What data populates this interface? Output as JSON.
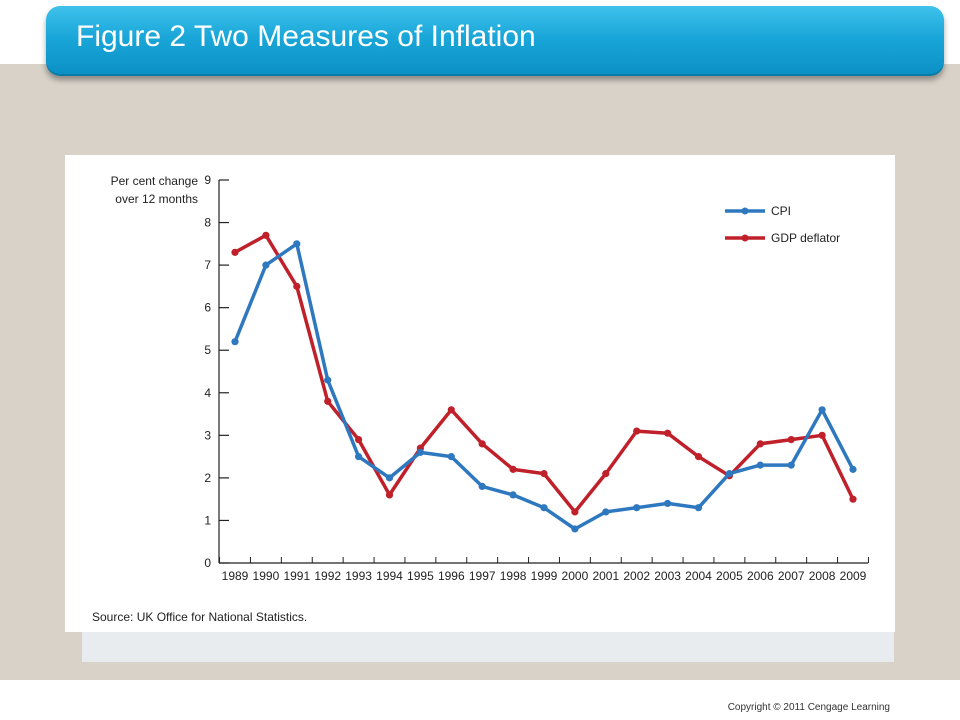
{
  "slide": {
    "title": "Figure 2 Two Measures of Inflation",
    "copyright": "Copyright  © 2011  Cengage Learning",
    "source": "Source: UK Office for National Statistics."
  },
  "chart_data": {
    "type": "line",
    "ylabel": [
      "Per cent change",
      "over 12 months"
    ],
    "xlabel": "",
    "ylim": [
      0,
      9
    ],
    "yticks": [
      0,
      1,
      2,
      3,
      4,
      5,
      6,
      7,
      8,
      9
    ],
    "x": [
      "1989",
      "1990",
      "1991",
      "1992",
      "1993",
      "1994",
      "1995",
      "1996",
      "1997",
      "1998",
      "1999",
      "2000",
      "2001",
      "2002",
      "2003",
      "2004",
      "2005",
      "2006",
      "2007",
      "2008",
      "2009"
    ],
    "legend_position": "top-right",
    "series": [
      {
        "name": "CPI",
        "color": "#2e78c0",
        "values": [
          5.2,
          7.0,
          7.5,
          4.3,
          2.5,
          2.0,
          2.6,
          2.5,
          1.8,
          1.6,
          1.3,
          0.8,
          1.2,
          1.3,
          1.4,
          1.3,
          2.1,
          2.3,
          2.3,
          3.6,
          2.2
        ]
      },
      {
        "name": "GDP deflator",
        "color": "#c0202a",
        "values": [
          7.3,
          7.7,
          6.5,
          3.8,
          2.9,
          1.6,
          2.7,
          3.6,
          2.8,
          2.2,
          2.1,
          1.2,
          2.1,
          3.1,
          3.05,
          2.5,
          2.05,
          2.8,
          2.9,
          3.0,
          1.5
        ]
      }
    ]
  }
}
